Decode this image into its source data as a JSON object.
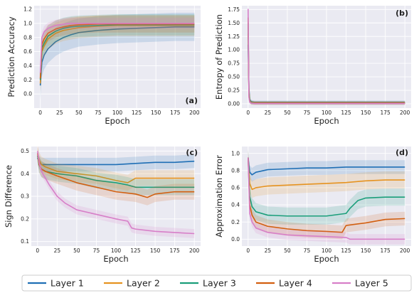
{
  "legend": [
    {
      "name": "Layer 1",
      "color": "#1f6fb5"
    },
    {
      "name": "Layer 2",
      "color": "#e69320"
    },
    {
      "name": "Layer 3",
      "color": "#1a9e7a"
    },
    {
      "name": "Layer 4",
      "color": "#d25f10"
    },
    {
      "name": "Layer 5",
      "color": "#d77fc8"
    }
  ],
  "chart_data": [
    {
      "type": "line",
      "panel_label": "(a)",
      "xlabel": "Epoch",
      "ylabel": "Prediction Accuracy",
      "xlim": [
        -8,
        208
      ],
      "ylim": [
        -0.2,
        1.25
      ],
      "xticks": [
        "0",
        "25",
        "50",
        "75",
        "100",
        "125",
        "150",
        "175",
        "200"
      ],
      "yticks": [
        "0.0",
        "0.2",
        "0.4",
        "0.6",
        "0.8",
        "1.0",
        "1.2"
      ],
      "ytick_values": [
        0,
        0.2,
        0.4,
        0.6,
        0.8,
        1.0,
        1.2
      ],
      "grid": true,
      "series": [
        {
          "name": "Layer 1",
          "x": [
            0,
            2,
            5,
            10,
            20,
            30,
            40,
            50,
            75,
            100,
            125,
            150,
            175,
            200
          ],
          "y": [
            0.12,
            0.45,
            0.55,
            0.64,
            0.74,
            0.8,
            0.84,
            0.87,
            0.9,
            0.92,
            0.93,
            0.94,
            0.95,
            0.95
          ],
          "band": 0.2
        },
        {
          "name": "Layer 2",
          "x": [
            0,
            2,
            5,
            10,
            20,
            30,
            40,
            50,
            75,
            100,
            125,
            150,
            175,
            200
          ],
          "y": [
            0.15,
            0.6,
            0.68,
            0.78,
            0.86,
            0.9,
            0.92,
            0.94,
            0.96,
            0.97,
            0.97,
            0.97,
            0.97,
            0.97
          ],
          "band": 0.15
        },
        {
          "name": "Layer 3",
          "x": [
            0,
            2,
            5,
            10,
            20,
            30,
            40,
            50,
            75,
            100,
            125,
            150,
            175,
            200
          ],
          "y": [
            0.2,
            0.65,
            0.72,
            0.82,
            0.89,
            0.93,
            0.95,
            0.96,
            0.97,
            0.98,
            0.98,
            0.98,
            0.98,
            0.98
          ],
          "band": 0.15
        },
        {
          "name": "Layer 4",
          "x": [
            0,
            2,
            5,
            10,
            20,
            30,
            40,
            50,
            75,
            100,
            125,
            150,
            175,
            200
          ],
          "y": [
            0.22,
            0.7,
            0.78,
            0.86,
            0.92,
            0.95,
            0.97,
            0.98,
            0.99,
            0.99,
            0.99,
            0.99,
            0.99,
            0.99
          ],
          "band": 0.12
        },
        {
          "name": "Layer 5",
          "x": [
            0,
            2,
            5,
            10,
            20,
            30,
            40,
            50,
            75,
            100,
            125,
            150,
            175,
            200
          ],
          "y": [
            0.3,
            0.8,
            0.88,
            0.93,
            0.97,
            0.99,
            1.0,
            1.0,
            1.0,
            1.0,
            1.0,
            1.0,
            1.0,
            1.0
          ],
          "band": 0.08
        }
      ]
    },
    {
      "type": "line",
      "panel_label": "(b)",
      "xlabel": "Epoch",
      "ylabel": "Entropy of Prediction",
      "xlim": [
        -8,
        208
      ],
      "ylim": [
        -0.08,
        1.82
      ],
      "xticks": [
        "0",
        "25",
        "50",
        "75",
        "100",
        "125",
        "150",
        "175",
        "200"
      ],
      "yticks": [
        "0.00",
        "0.25",
        "0.50",
        "0.75",
        "1.00",
        "1.25",
        "1.50",
        "1.75"
      ],
      "ytick_values": [
        0,
        0.25,
        0.5,
        0.75,
        1.0,
        1.25,
        1.5,
        1.75
      ],
      "grid": true,
      "series": [
        {
          "name": "Layer 1",
          "x": [
            0,
            1,
            2,
            4,
            8,
            20,
            50,
            100,
            150,
            200
          ],
          "y": [
            1.1,
            0.3,
            0.08,
            0.04,
            0.03,
            0.03,
            0.03,
            0.03,
            0.03,
            0.03
          ],
          "band": 0.03
        },
        {
          "name": "Layer 2",
          "x": [
            0,
            1,
            2,
            4,
            8,
            20,
            50,
            100,
            150,
            200
          ],
          "y": [
            1.3,
            0.25,
            0.06,
            0.03,
            0.02,
            0.02,
            0.02,
            0.02,
            0.02,
            0.02
          ],
          "band": 0.03
        },
        {
          "name": "Layer 3",
          "x": [
            0,
            1,
            2,
            4,
            8,
            20,
            50,
            100,
            150,
            200
          ],
          "y": [
            1.5,
            0.2,
            0.05,
            0.02,
            0.01,
            0.01,
            0.01,
            0.01,
            0.01,
            0.01
          ],
          "band": 0.03
        },
        {
          "name": "Layer 4",
          "x": [
            0,
            1,
            2,
            4,
            8,
            20,
            50,
            100,
            150,
            200
          ],
          "y": [
            1.6,
            0.15,
            0.04,
            0.01,
            0.01,
            0.01,
            0.01,
            0.01,
            0.01,
            0.01
          ],
          "band": 0.03
        },
        {
          "name": "Layer 5",
          "x": [
            0,
            1,
            2,
            4,
            8,
            20,
            50,
            100,
            150,
            200
          ],
          "y": [
            1.76,
            0.12,
            0.03,
            0.01,
            0.005,
            0.005,
            0.005,
            0.005,
            0.005,
            0.005
          ],
          "band": 0.02
        }
      ]
    },
    {
      "type": "line",
      "panel_label": "(c)",
      "xlabel": "Epoch",
      "ylabel": "Sign Difference",
      "xlim": [
        -8,
        208
      ],
      "ylim": [
        0.08,
        0.52
      ],
      "xticks": [
        "0",
        "25",
        "50",
        "75",
        "100",
        "125",
        "150",
        "175",
        "200"
      ],
      "yticks": [
        "0.1",
        "0.2",
        "0.3",
        "0.4",
        "0.5"
      ],
      "ytick_values": [
        0.1,
        0.2,
        0.3,
        0.4,
        0.5
      ],
      "grid": true,
      "series": [
        {
          "name": "Layer 1",
          "x": [
            0,
            2,
            5,
            10,
            25,
            50,
            75,
            100,
            125,
            150,
            175,
            200
          ],
          "y": [
            0.47,
            0.45,
            0.44,
            0.44,
            0.44,
            0.44,
            0.44,
            0.44,
            0.445,
            0.45,
            0.45,
            0.455
          ],
          "band": 0.03
        },
        {
          "name": "Layer 2",
          "x": [
            0,
            2,
            5,
            10,
            25,
            50,
            75,
            100,
            115,
            125,
            150,
            175,
            200
          ],
          "y": [
            0.49,
            0.46,
            0.44,
            0.43,
            0.41,
            0.4,
            0.39,
            0.37,
            0.36,
            0.38,
            0.38,
            0.38,
            0.38
          ],
          "band": 0.035
        },
        {
          "name": "Layer 3",
          "x": [
            0,
            2,
            5,
            10,
            25,
            50,
            75,
            100,
            115,
            125,
            150,
            175,
            200
          ],
          "y": [
            0.48,
            0.44,
            0.42,
            0.41,
            0.4,
            0.39,
            0.37,
            0.36,
            0.35,
            0.34,
            0.34,
            0.34,
            0.34
          ],
          "band": 0.035
        },
        {
          "name": "Layer 4",
          "x": [
            0,
            2,
            5,
            10,
            25,
            50,
            75,
            100,
            125,
            140,
            150,
            175,
            200
          ],
          "y": [
            0.49,
            0.44,
            0.42,
            0.41,
            0.39,
            0.36,
            0.34,
            0.32,
            0.31,
            0.295,
            0.31,
            0.32,
            0.32
          ],
          "band": 0.035
        },
        {
          "name": "Layer 5",
          "x": [
            0,
            2,
            5,
            10,
            15,
            25,
            35,
            50,
            75,
            100,
            115,
            120,
            125,
            150,
            175,
            200
          ],
          "y": [
            0.5,
            0.45,
            0.41,
            0.38,
            0.35,
            0.3,
            0.27,
            0.24,
            0.22,
            0.2,
            0.19,
            0.16,
            0.155,
            0.145,
            0.14,
            0.135
          ],
          "band": 0.02
        }
      ]
    },
    {
      "type": "line",
      "panel_label": "(d)",
      "xlabel": "Epoch",
      "ylabel": "Approximation Error",
      "xlim": [
        -8,
        208
      ],
      "ylim": [
        -0.08,
        1.08
      ],
      "xticks": [
        "0",
        "25",
        "50",
        "75",
        "100",
        "125",
        "150",
        "175",
        "200"
      ],
      "yticks": [
        "0.0",
        "0.2",
        "0.4",
        "0.6",
        "0.8",
        "1.0"
      ],
      "ytick_values": [
        0,
        0.2,
        0.4,
        0.6,
        0.8,
        1.0
      ],
      "grid": true,
      "series": [
        {
          "name": "Layer 1",
          "x": [
            0,
            2,
            5,
            10,
            25,
            50,
            75,
            100,
            125,
            150,
            175,
            200
          ],
          "y": [
            0.95,
            0.78,
            0.75,
            0.78,
            0.81,
            0.82,
            0.83,
            0.83,
            0.84,
            0.84,
            0.84,
            0.84
          ],
          "band": 0.08
        },
        {
          "name": "Layer 2",
          "x": [
            0,
            2,
            5,
            10,
            25,
            50,
            75,
            100,
            125,
            150,
            175,
            200
          ],
          "y": [
            0.95,
            0.65,
            0.58,
            0.6,
            0.62,
            0.63,
            0.64,
            0.65,
            0.66,
            0.68,
            0.69,
            0.69
          ],
          "band": 0.1
        },
        {
          "name": "Layer 3",
          "x": [
            0,
            2,
            5,
            10,
            25,
            50,
            75,
            100,
            125,
            130,
            140,
            150,
            175,
            200
          ],
          "y": [
            0.95,
            0.5,
            0.38,
            0.32,
            0.28,
            0.27,
            0.27,
            0.27,
            0.3,
            0.36,
            0.45,
            0.48,
            0.49,
            0.49
          ],
          "band": 0.1
        },
        {
          "name": "Layer 4",
          "x": [
            0,
            2,
            5,
            10,
            25,
            50,
            75,
            100,
            120,
            125,
            150,
            175,
            200
          ],
          "y": [
            0.95,
            0.4,
            0.28,
            0.2,
            0.15,
            0.12,
            0.1,
            0.09,
            0.08,
            0.16,
            0.19,
            0.23,
            0.24
          ],
          "band": 0.08
        },
        {
          "name": "Layer 5",
          "x": [
            0,
            2,
            5,
            10,
            25,
            50,
            75,
            100,
            125,
            130,
            150,
            175,
            200
          ],
          "y": [
            0.95,
            0.3,
            0.2,
            0.13,
            0.08,
            0.05,
            0.04,
            0.03,
            0.02,
            0.0,
            0.0,
            0.0,
            0.0
          ],
          "band": 0.06
        }
      ]
    }
  ]
}
